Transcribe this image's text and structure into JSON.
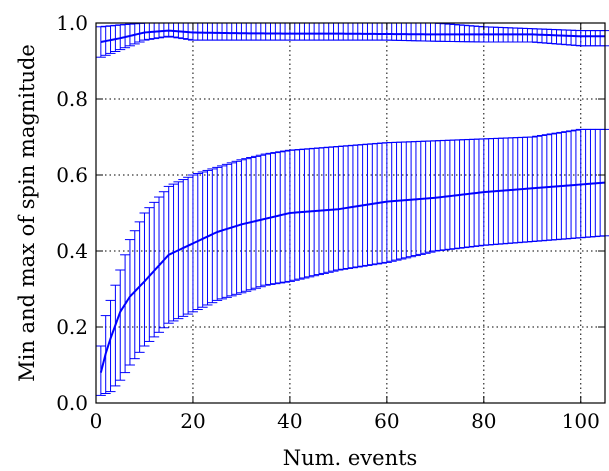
{
  "chart_data": {
    "type": "line",
    "xlabel": "Num. events",
    "ylabel": "Min and max of spin magnitude",
    "xlim": [
      0,
      105
    ],
    "ylim": [
      0.0,
      1.0
    ],
    "xticks": [
      0,
      20,
      40,
      60,
      80,
      100
    ],
    "yticks": [
      0.0,
      0.2,
      0.4,
      0.6,
      0.8,
      1.0
    ],
    "xtick_labels": [
      "0",
      "20",
      "40",
      "60",
      "80",
      "100"
    ],
    "ytick_labels": [
      "0.0",
      "0.2",
      "0.4",
      "0.6",
      "0.8",
      "1.0"
    ],
    "grid": true,
    "grid_style": "dotted",
    "series_color": "#0000ff",
    "series": [
      {
        "x": [
          1,
          5,
          10,
          15,
          20,
          30,
          40,
          50,
          60,
          70,
          80,
          90,
          100,
          105
        ],
        "y": [
          0.95,
          0.96,
          0.975,
          0.98,
          0.975,
          0.973,
          0.972,
          0.972,
          0.971,
          0.97,
          0.97,
          0.97,
          0.965,
          0.965
        ],
        "err_low": [
          0.91,
          0.93,
          0.955,
          0.965,
          0.955,
          0.955,
          0.955,
          0.955,
          0.955,
          0.952,
          0.95,
          0.95,
          0.94,
          0.94
        ],
        "err_high": [
          0.99,
          0.995,
          1.0,
          1.0,
          1.0,
          1.0,
          1.0,
          1.0,
          1.0,
          1.0,
          0.99,
          0.985,
          0.98,
          0.98
        ]
      },
      {
        "x": [
          1,
          2,
          3,
          5,
          7,
          10,
          15,
          20,
          25,
          30,
          35,
          40,
          50,
          60,
          70,
          80,
          90,
          100,
          105
        ],
        "y": [
          0.08,
          0.13,
          0.17,
          0.24,
          0.28,
          0.32,
          0.39,
          0.42,
          0.45,
          0.47,
          0.485,
          0.5,
          0.51,
          0.53,
          0.54,
          0.555,
          0.565,
          0.575,
          0.58
        ],
        "err_low": [
          0.02,
          0.025,
          0.03,
          0.06,
          0.1,
          0.15,
          0.21,
          0.24,
          0.27,
          0.29,
          0.31,
          0.32,
          0.35,
          0.37,
          0.4,
          0.415,
          0.425,
          0.435,
          0.44
        ],
        "err_high": [
          0.15,
          0.23,
          0.27,
          0.35,
          0.43,
          0.5,
          0.57,
          0.6,
          0.62,
          0.64,
          0.655,
          0.665,
          0.675,
          0.685,
          0.69,
          0.695,
          0.7,
          0.72,
          0.72
        ]
      }
    ]
  }
}
